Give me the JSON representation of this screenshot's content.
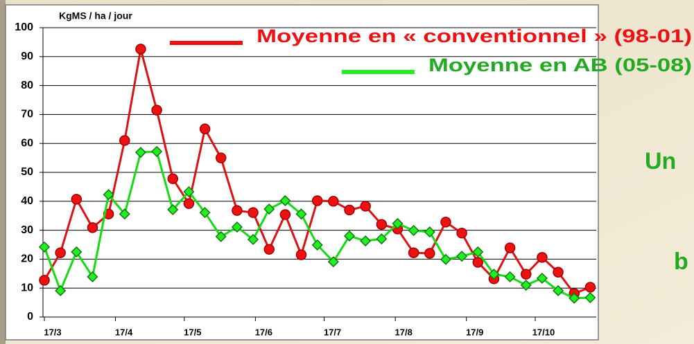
{
  "chart_data": {
    "type": "line",
    "y_label": "KgMS / ha / jour",
    "x": [
      0,
      7,
      14,
      21,
      28,
      35,
      42,
      49,
      56,
      63,
      70,
      77,
      84,
      91,
      98,
      105,
      112,
      119,
      126,
      133,
      140,
      147,
      154,
      161,
      168,
      175,
      182,
      189,
      196,
      203,
      210,
      217,
      224,
      231,
      238
    ],
    "xlim": [
      0,
      240
    ],
    "xticks": [
      {
        "value": 0,
        "label": "17/3"
      },
      {
        "value": 31,
        "label": "17/4"
      },
      {
        "value": 61,
        "label": "17/5"
      },
      {
        "value": 92,
        "label": "17/6"
      },
      {
        "value": 122,
        "label": "17/7"
      },
      {
        "value": 153,
        "label": "17/8"
      },
      {
        "value": 184,
        "label": "17/9"
      },
      {
        "value": 214,
        "label": "17/10"
      }
    ],
    "ylim": [
      0,
      100
    ],
    "yticks": [
      0,
      10,
      20,
      30,
      40,
      50,
      60,
      70,
      80,
      90,
      100
    ],
    "grid": true,
    "series": [
      {
        "name": "Moyenne en « conventionnel » (98-01)",
        "color": "#ee1111",
        "marker": "circle",
        "values": [
          12.7,
          22.2,
          40.7,
          30.9,
          35.6,
          61,
          92.6,
          71.5,
          47.8,
          39.2,
          65,
          55,
          36.8,
          36.1,
          23.4,
          35.4,
          21.5,
          40.2,
          40,
          37,
          38.3,
          32,
          30.4,
          22.2,
          22,
          32.8,
          29,
          18.9,
          13.2,
          23.9,
          14.8,
          20.6,
          15.5,
          8.1,
          10.3
        ]
      },
      {
        "name": "Moyenne en AB (05-08)",
        "color": "#22ee22",
        "marker": "diamond",
        "values": [
          24.2,
          9.1,
          22.5,
          13.9,
          42.3,
          35.6,
          56.9,
          57.2,
          37.1,
          43.3,
          36.1,
          27.8,
          31.1,
          26.8,
          37.3,
          40.2,
          35.6,
          24.9,
          19.1,
          28,
          26.3,
          27,
          32.3,
          29.9,
          29.4,
          19.9,
          21,
          22.5,
          14.8,
          13.9,
          11,
          13.4,
          9.1,
          6.5,
          6.7
        ]
      }
    ],
    "annotations": [
      "Un",
      "b"
    ]
  }
}
